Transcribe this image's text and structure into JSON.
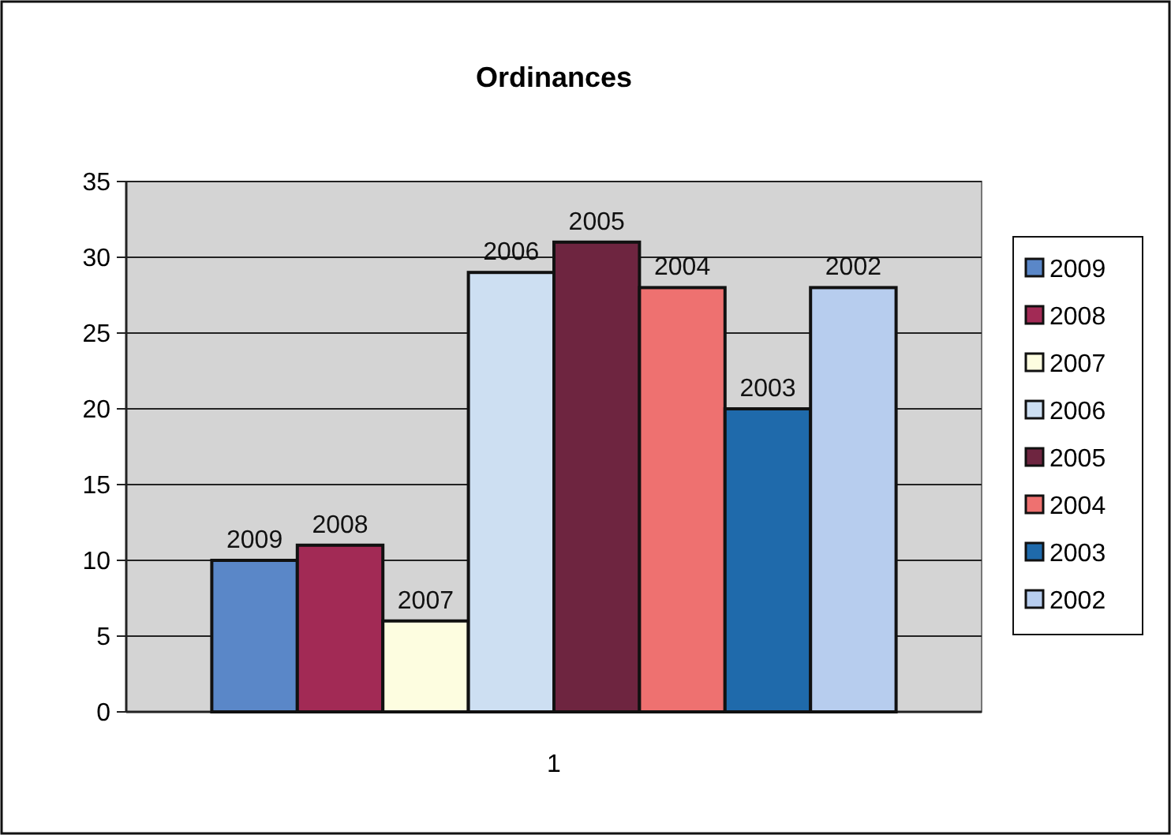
{
  "chart_data": {
    "type": "bar",
    "title": "Ordinances",
    "categories": [
      "1"
    ],
    "series": [
      {
        "name": "2009",
        "color": "#5a87c8",
        "values": [
          10
        ]
      },
      {
        "name": "2008",
        "color": "#a22a55",
        "values": [
          11
        ]
      },
      {
        "name": "2007",
        "color": "#fdfde0",
        "values": [
          6
        ]
      },
      {
        "name": "2006",
        "color": "#cddff2",
        "values": [
          29
        ]
      },
      {
        "name": "2005",
        "color": "#6e2540",
        "values": [
          31
        ]
      },
      {
        "name": "2004",
        "color": "#ee7170",
        "values": [
          28
        ]
      },
      {
        "name": "2003",
        "color": "#1f6aab",
        "values": [
          20
        ]
      },
      {
        "name": "2002",
        "color": "#b7cdee",
        "values": [
          28
        ]
      }
    ],
    "ylim": [
      0,
      35
    ],
    "yticks": [
      0,
      5,
      10,
      15,
      20,
      25,
      30,
      35
    ],
    "grid": "y",
    "legend": "right"
  }
}
